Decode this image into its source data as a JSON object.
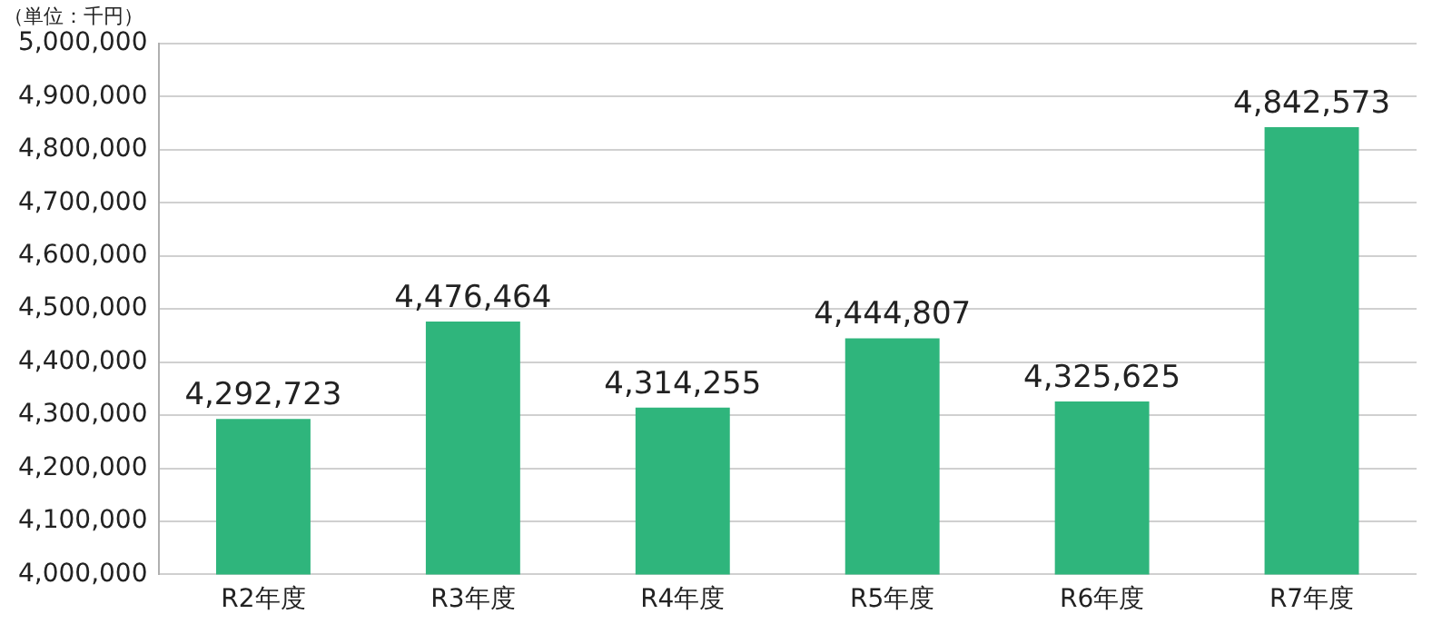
{
  "chart_data": {
    "type": "bar",
    "ylabel": "（単位：千円）",
    "categories": [
      "R2年度",
      "R3年度",
      "R4年度",
      "R5年度",
      "R6年度",
      "R7年度"
    ],
    "values": [
      4292723,
      4476464,
      4314255,
      4444807,
      4325625,
      4842573
    ],
    "value_labels": [
      "4,292,723",
      "4,476,464",
      "4,314,255",
      "4,444,807",
      "4,325,625",
      "4,842,573"
    ],
    "color": "#2fb57c",
    "ylim": [
      4000000,
      5000000
    ],
    "yticks": [
      {
        "value": 4000000,
        "label": "4,000,000"
      },
      {
        "value": 4100000,
        "label": "4,100,000"
      },
      {
        "value": 4200000,
        "label": "4,200,000"
      },
      {
        "value": 4300000,
        "label": "4,300,000"
      },
      {
        "value": 4400000,
        "label": "4,400,000"
      },
      {
        "value": 4500000,
        "label": "4,500,000"
      },
      {
        "value": 4600000,
        "label": "4,600,000"
      },
      {
        "value": 4700000,
        "label": "4,700,000"
      },
      {
        "value": 4800000,
        "label": "4,800,000"
      },
      {
        "value": 4900000,
        "label": "4,900,000"
      },
      {
        "value": 5000000,
        "label": "5,000,000"
      }
    ],
    "grid": "y"
  }
}
